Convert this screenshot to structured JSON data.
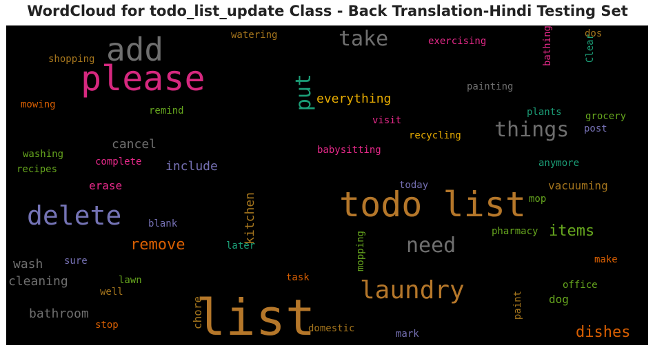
{
  "chart_data": {
    "type": "wordcloud",
    "title": "WordCloud for todo_list_update Class - Back Translation-Hindi Testing Set",
    "background": "#000000",
    "words": [
      {
        "text": "list",
        "color": "#b5772a"
      },
      {
        "text": "todo list",
        "color": "#b5772a"
      },
      {
        "text": "please",
        "color": "#d6287f"
      },
      {
        "text": "add",
        "color": "#6f6f6f"
      },
      {
        "text": "delete",
        "color": "#7473b5"
      },
      {
        "text": "laundry",
        "color": "#b5772a"
      },
      {
        "text": "need",
        "color": "#6f6f6f"
      },
      {
        "text": "things",
        "color": "#6f6f6f"
      },
      {
        "text": "take",
        "color": "#6f6f6f"
      },
      {
        "text": "put",
        "color": "#1b9e77"
      },
      {
        "text": "remove",
        "color": "#d95f02"
      },
      {
        "text": "items",
        "color": "#66a61e"
      },
      {
        "text": "dishes",
        "color": "#d95f02"
      },
      {
        "text": "everything",
        "color": "#e6ab02"
      },
      {
        "text": "kitchen",
        "color": "#a6761d"
      },
      {
        "text": "bathroom",
        "color": "#6f6f6f"
      },
      {
        "text": "cleaning",
        "color": "#6f6f6f"
      },
      {
        "text": "wash",
        "color": "#6f6f6f"
      },
      {
        "text": "cancel",
        "color": "#6f6f6f"
      },
      {
        "text": "include",
        "color": "#7570b3"
      },
      {
        "text": "erase",
        "color": "#e7298a"
      },
      {
        "text": "vacuuming",
        "color": "#a6761d"
      },
      {
        "text": "dog",
        "color": "#66a61e"
      },
      {
        "text": "chore",
        "color": "#a6761d"
      },
      {
        "text": "shopping",
        "color": "#a6761d"
      },
      {
        "text": "exercising",
        "color": "#e7298a"
      },
      {
        "text": "watering",
        "color": "#a6761d"
      },
      {
        "text": "painting",
        "color": "#6f6f6f"
      },
      {
        "text": "recycling",
        "color": "#e6ab02"
      },
      {
        "text": "babysitting",
        "color": "#e7298a"
      },
      {
        "text": "visit",
        "color": "#e7298a"
      },
      {
        "text": "plants",
        "color": "#1b9e77"
      },
      {
        "text": "grocery",
        "color": "#66a61e"
      },
      {
        "text": "post",
        "color": "#7570b3"
      },
      {
        "text": "anymore",
        "color": "#1b9e77"
      },
      {
        "text": "mowing",
        "color": "#d95f02"
      },
      {
        "text": "remind",
        "color": "#66a61e"
      },
      {
        "text": "washing",
        "color": "#66a61e"
      },
      {
        "text": "recipes",
        "color": "#66a61e"
      },
      {
        "text": "complete",
        "color": "#e7298a"
      },
      {
        "text": "today",
        "color": "#7570b3"
      },
      {
        "text": "mop",
        "color": "#66a61e"
      },
      {
        "text": "blank",
        "color": "#7570b3"
      },
      {
        "text": "pharmacy",
        "color": "#66a61e"
      },
      {
        "text": "later",
        "color": "#1b9e77"
      },
      {
        "text": "sure",
        "color": "#7570b3"
      },
      {
        "text": "lawn",
        "color": "#66a61e"
      },
      {
        "text": "well",
        "color": "#a6761d"
      },
      {
        "text": "task",
        "color": "#d95f02"
      },
      {
        "text": "mopping",
        "color": "#66a61e"
      },
      {
        "text": "make",
        "color": "#d95f02"
      },
      {
        "text": "office",
        "color": "#66a61e"
      },
      {
        "text": "paint",
        "color": "#a6761d"
      },
      {
        "text": "stop",
        "color": "#d95f02"
      },
      {
        "text": "domestic",
        "color": "#a6761d"
      },
      {
        "text": "mark",
        "color": "#7570b3"
      },
      {
        "text": "dos",
        "color": "#a6761d"
      },
      {
        "text": "Clear",
        "color": "#1b9e77"
      },
      {
        "text": "bathing",
        "color": "#e7298a"
      }
    ]
  }
}
